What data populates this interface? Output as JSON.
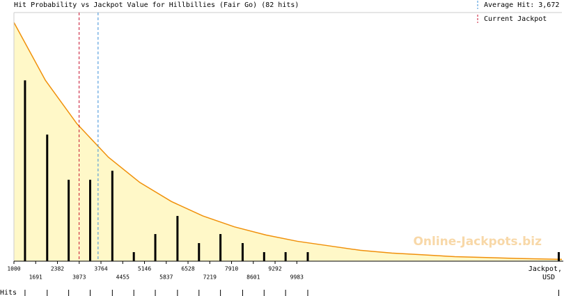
{
  "chart_data": {
    "type": "bar",
    "title": "Hit Probability vs Jackpot Value for Hillbillies (Fair Go) (82 hits)",
    "x_label_lines": [
      "Jackpot,",
      "USD"
    ],
    "xlim": [
      1000,
      18400
    ],
    "ylim": [
      0,
      27.5
    ],
    "xticks": [
      1000,
      1691,
      2382,
      3073,
      3764,
      4455,
      5146,
      5837,
      6528,
      7219,
      7910,
      8601,
      9292,
      9983
    ],
    "series": [
      {
        "name": "Hits",
        "color": "#000000",
        "x": [
          1352,
          2056,
          2738,
          3421,
          4125,
          4807,
          5489,
          6193,
          6876,
          7558,
          8262,
          8944,
          9626,
          10330,
          18300
        ],
        "values": [
          20,
          14,
          9,
          9,
          10,
          1,
          3,
          5,
          2,
          3,
          2,
          1,
          1,
          1,
          1
        ]
      }
    ],
    "curve": {
      "color": "#f0900a",
      "fill": "#fff8c8",
      "x": [
        1000,
        2000,
        3000,
        4000,
        5000,
        6000,
        7000,
        8000,
        9000,
        10000,
        11000,
        12000,
        13000,
        14000,
        15000,
        16000,
        17000,
        18400
      ],
      "values": [
        26.4,
        20.0,
        15.2,
        11.5,
        8.7,
        6.6,
        5.0,
        3.8,
        2.9,
        2.2,
        1.7,
        1.2,
        0.9,
        0.7,
        0.5,
        0.4,
        0.3,
        0.2
      ]
    },
    "reference_lines": [
      {
        "name": "Average Hit: 3,672",
        "value": 3672,
        "color": "#3a8fd8"
      },
      {
        "name": "Current Jackpot",
        "value": 3070,
        "color": "#c8102e"
      }
    ],
    "watermark": "Online-Jackpots.biz"
  }
}
